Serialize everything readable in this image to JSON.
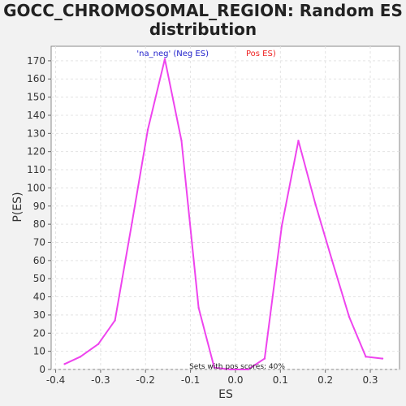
{
  "chart_data": {
    "type": "line",
    "title_line1": "GOCC_CHROMOSOMAL_REGION: Random ES",
    "title_line2": "distribution",
    "xlabel": "ES",
    "ylabel": "P(ES)",
    "xlim": [
      -0.41,
      0.365
    ],
    "ylim": [
      0,
      178
    ],
    "xticks": [
      -0.4,
      -0.3,
      -0.2,
      -0.1,
      0.0,
      0.1,
      0.2,
      0.3
    ],
    "xtick_labels": [
      "-0.4",
      "-0.3",
      "-0.2",
      "-0.1",
      "0.0",
      "0.1",
      "0.2",
      "0.3"
    ],
    "yticks": [
      0,
      10,
      20,
      30,
      40,
      50,
      60,
      70,
      80,
      90,
      100,
      110,
      120,
      130,
      140,
      150,
      160,
      170
    ],
    "grid": true,
    "legend_placement": "top-center",
    "legend": {
      "neg_label": "'na_neg' (Neg ES)",
      "pos_label": "Pos ES)",
      "neg_color": "#2222cc",
      "pos_color": "#ee2222"
    },
    "annotation": "Sets with pos scores: 40%",
    "line_color": "#ee44ee",
    "series": [
      {
        "x": [
          -0.38,
          -0.345,
          -0.305,
          -0.268,
          -0.23,
          -0.195,
          -0.157,
          -0.12,
          -0.082,
          -0.047,
          -0.01,
          0.028,
          0.065,
          0.103,
          0.14,
          0.178,
          0.215,
          0.253,
          0.29,
          0.327
        ],
        "values": [
          3,
          7,
          14,
          27,
          81,
          132,
          171,
          126,
          34,
          1,
          0,
          0,
          6,
          79,
          126,
          91,
          60,
          29,
          7,
          6
        ]
      }
    ]
  }
}
